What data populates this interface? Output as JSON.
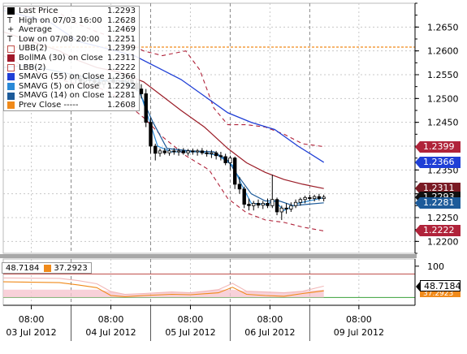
{
  "chart_data": {
    "type": "line",
    "price_axis": {
      "ylim": [
        1.2175,
        1.27
      ],
      "ticks": [
        "1.2650",
        "1.2600",
        "1.2550",
        "1.2500",
        "1.2450",
        "1.2400",
        "1.2350",
        "1.2300",
        "1.2250",
        "1.2200"
      ],
      "tick_values": [
        1.265,
        1.26,
        1.255,
        1.25,
        1.245,
        1.24,
        1.235,
        1.23,
        1.225,
        1.22
      ]
    },
    "sub_axis": {
      "ylim": [
        0,
        110
      ],
      "ticks": [
        "100"
      ],
      "tick_values": [
        100
      ]
    },
    "time_axis": {
      "xlim": [
        0,
        8.8
      ],
      "time_labels": [
        "08:00",
        "08:00",
        "08:00",
        "08:00",
        "08:00"
      ],
      "date_labels": [
        "03 Jul 2012",
        "04 Jul 2012",
        "05 Jul 2012",
        "06 Jul 2012",
        "09 Jul 2012"
      ],
      "label_positions": [
        0.6,
        2.3,
        4.0,
        5.7,
        7.6
      ],
      "day_separators": [
        1.45,
        3.15,
        4.85,
        6.55
      ]
    },
    "legend": [
      {
        "name": "Last Price",
        "value": "1.2293",
        "color": "#000000",
        "marker": "square"
      },
      {
        "name": "High on 07/03 16:00",
        "value": "1.2628",
        "color": "#000000",
        "marker": "tee"
      },
      {
        "name": "Average",
        "value": "1.2469",
        "color": "#000000",
        "marker": "plus"
      },
      {
        "name": "Low on 07/08 20:00",
        "value": "1.2251",
        "color": "#000000",
        "marker": "tee"
      },
      {
        "name": "UBB(2)",
        "value": "1.2399",
        "color": "#c0504d",
        "marker": "outline"
      },
      {
        "name": "BollMA (30) on Close",
        "value": "1.2311",
        "color": "#a0182a",
        "marker": "square"
      },
      {
        "name": "LBB(2)",
        "value": "1.2222",
        "color": "#c0504d",
        "marker": "outline"
      },
      {
        "name": "SMAVG (55) on Close",
        "value": "1.2366",
        "color": "#1f3fd6",
        "marker": "square"
      },
      {
        "name": "SMAVG (5) on Close",
        "value": "1.2292",
        "color": "#2a8ad8",
        "marker": "square"
      },
      {
        "name": "SMAVG (14) on Close",
        "value": "1.2281",
        "color": "#1d5b9a",
        "marker": "square"
      },
      {
        "name": "Prev Close -----",
        "value": "1.2608",
        "color": "#f08a1a",
        "marker": "square"
      }
    ],
    "axis_tags": [
      {
        "value": "1.2399",
        "price": 1.2399,
        "color": "#b0233a"
      },
      {
        "value": "1.2366",
        "price": 1.2366,
        "color": "#1f3fd6"
      },
      {
        "value": "1.2311",
        "price": 1.2311,
        "color": "#7a1a24"
      },
      {
        "value": "1.2293",
        "price": 1.2293,
        "color": "#111111"
      },
      {
        "value": "1.2281",
        "price": 1.2281,
        "color": "#1d5b9a"
      },
      {
        "value": "1.2222",
        "price": 1.2222,
        "color": "#b0233a"
      }
    ],
    "sub_legend": [
      {
        "value": "48.7184",
        "color": "#ffffff"
      },
      {
        "value": "37.2923",
        "color": "#f08a1a"
      }
    ],
    "sub_tag": {
      "value": "48.7184",
      "value2": "37.2923"
    },
    "prev_close": 1.2608,
    "candles": [
      {
        "t": 1.45,
        "o": 1.2545,
        "h": 1.2552,
        "l": 1.253,
        "c": 1.254
      },
      {
        "t": 1.55,
        "o": 1.254,
        "h": 1.2548,
        "l": 1.2532,
        "c": 1.2542
      },
      {
        "t": 1.65,
        "o": 1.2542,
        "h": 1.255,
        "l": 1.253,
        "c": 1.2536
      },
      {
        "t": 1.75,
        "o": 1.2536,
        "h": 1.2545,
        "l": 1.2528,
        "c": 1.254
      },
      {
        "t": 1.85,
        "o": 1.254,
        "h": 1.2548,
        "l": 1.2532,
        "c": 1.2538
      },
      {
        "t": 1.95,
        "o": 1.2538,
        "h": 1.2546,
        "l": 1.2528,
        "c": 1.2534
      },
      {
        "t": 2.05,
        "o": 1.2534,
        "h": 1.2542,
        "l": 1.2522,
        "c": 1.253
      },
      {
        "t": 2.15,
        "o": 1.253,
        "h": 1.254,
        "l": 1.2522,
        "c": 1.2536
      },
      {
        "t": 2.25,
        "o": 1.2536,
        "h": 1.2544,
        "l": 1.2528,
        "c": 1.254
      },
      {
        "t": 2.35,
        "o": 1.254,
        "h": 1.2547,
        "l": 1.253,
        "c": 1.2534
      },
      {
        "t": 2.45,
        "o": 1.2534,
        "h": 1.2542,
        "l": 1.2526,
        "c": 1.2538
      },
      {
        "t": 2.55,
        "o": 1.2538,
        "h": 1.2545,
        "l": 1.253,
        "c": 1.2536
      },
      {
        "t": 2.65,
        "o": 1.2536,
        "h": 1.2544,
        "l": 1.2528,
        "c": 1.254
      },
      {
        "t": 2.75,
        "o": 1.254,
        "h": 1.2546,
        "l": 1.2528,
        "c": 1.2532
      },
      {
        "t": 2.85,
        "o": 1.2532,
        "h": 1.2538,
        "l": 1.2515,
        "c": 1.252
      },
      {
        "t": 2.95,
        "o": 1.252,
        "h": 1.253,
        "l": 1.25,
        "c": 1.251
      },
      {
        "t": 3.05,
        "o": 1.251,
        "h": 1.252,
        "l": 1.244,
        "c": 1.245
      },
      {
        "t": 3.15,
        "o": 1.245,
        "h": 1.246,
        "l": 1.2385,
        "c": 1.24
      },
      {
        "t": 3.25,
        "o": 1.24,
        "h": 1.2405,
        "l": 1.237,
        "c": 1.2385
      },
      {
        "t": 3.35,
        "o": 1.2385,
        "h": 1.2395,
        "l": 1.2378,
        "c": 1.239
      },
      {
        "t": 3.45,
        "o": 1.239,
        "h": 1.2396,
        "l": 1.2382,
        "c": 1.2386
      },
      {
        "t": 3.55,
        "o": 1.2386,
        "h": 1.2394,
        "l": 1.238,
        "c": 1.239
      },
      {
        "t": 3.65,
        "o": 1.239,
        "h": 1.2396,
        "l": 1.2382,
        "c": 1.2388
      },
      {
        "t": 3.75,
        "o": 1.2388,
        "h": 1.2395,
        "l": 1.238,
        "c": 1.239
      },
      {
        "t": 3.85,
        "o": 1.239,
        "h": 1.2396,
        "l": 1.2382,
        "c": 1.2386
      },
      {
        "t": 3.95,
        "o": 1.2386,
        "h": 1.2394,
        "l": 1.238,
        "c": 1.239
      },
      {
        "t": 4.05,
        "o": 1.239,
        "h": 1.2395,
        "l": 1.2382,
        "c": 1.2388
      },
      {
        "t": 4.15,
        "o": 1.2388,
        "h": 1.2394,
        "l": 1.238,
        "c": 1.239
      },
      {
        "t": 4.25,
        "o": 1.239,
        "h": 1.2396,
        "l": 1.2382,
        "c": 1.2386
      },
      {
        "t": 4.35,
        "o": 1.2386,
        "h": 1.2392,
        "l": 1.2378,
        "c": 1.2384
      },
      {
        "t": 4.45,
        "o": 1.2384,
        "h": 1.2392,
        "l": 1.2375,
        "c": 1.2386
      },
      {
        "t": 4.55,
        "o": 1.2386,
        "h": 1.239,
        "l": 1.2372,
        "c": 1.238
      },
      {
        "t": 4.65,
        "o": 1.238,
        "h": 1.2388,
        "l": 1.237,
        "c": 1.2378
      },
      {
        "t": 4.75,
        "o": 1.2378,
        "h": 1.2384,
        "l": 1.236,
        "c": 1.2365
      },
      {
        "t": 4.85,
        "o": 1.2365,
        "h": 1.238,
        "l": 1.235,
        "c": 1.2375
      },
      {
        "t": 4.95,
        "o": 1.2375,
        "h": 1.2378,
        "l": 1.231,
        "c": 1.232
      },
      {
        "t": 5.05,
        "o": 1.232,
        "h": 1.2335,
        "l": 1.23,
        "c": 1.231
      },
      {
        "t": 5.15,
        "o": 1.231,
        "h": 1.2315,
        "l": 1.227,
        "c": 1.2278
      },
      {
        "t": 5.25,
        "o": 1.2278,
        "h": 1.229,
        "l": 1.2265,
        "c": 1.2275
      },
      {
        "t": 5.35,
        "o": 1.2275,
        "h": 1.2285,
        "l": 1.2265,
        "c": 1.228
      },
      {
        "t": 5.45,
        "o": 1.228,
        "h": 1.2288,
        "l": 1.227,
        "c": 1.2276
      },
      {
        "t": 5.55,
        "o": 1.2276,
        "h": 1.2285,
        "l": 1.2268,
        "c": 1.228
      },
      {
        "t": 5.65,
        "o": 1.228,
        "h": 1.229,
        "l": 1.227,
        "c": 1.2275
      },
      {
        "t": 5.75,
        "o": 1.2275,
        "h": 1.234,
        "l": 1.227,
        "c": 1.2288
      },
      {
        "t": 5.85,
        "o": 1.2288,
        "h": 1.2292,
        "l": 1.2255,
        "c": 1.2262
      },
      {
        "t": 5.95,
        "o": 1.2262,
        "h": 1.2275,
        "l": 1.2245,
        "c": 1.227
      },
      {
        "t": 6.05,
        "o": 1.227,
        "h": 1.228,
        "l": 1.2258,
        "c": 1.2268
      },
      {
        "t": 6.15,
        "o": 1.2268,
        "h": 1.2282,
        "l": 1.2262,
        "c": 1.2275
      },
      {
        "t": 6.25,
        "o": 1.2275,
        "h": 1.2288,
        "l": 1.227,
        "c": 1.2282
      },
      {
        "t": 6.35,
        "o": 1.2282,
        "h": 1.2292,
        "l": 1.2275,
        "c": 1.2288
      },
      {
        "t": 6.45,
        "o": 1.2288,
        "h": 1.2296,
        "l": 1.228,
        "c": 1.2292
      },
      {
        "t": 6.55,
        "o": 1.2292,
        "h": 1.2298,
        "l": 1.2285,
        "c": 1.229
      },
      {
        "t": 6.65,
        "o": 1.229,
        "h": 1.2298,
        "l": 1.2284,
        "c": 1.2294
      },
      {
        "t": 6.75,
        "o": 1.2294,
        "h": 1.23,
        "l": 1.2286,
        "c": 1.229
      },
      {
        "t": 6.85,
        "o": 1.229,
        "h": 1.2298,
        "l": 1.2284,
        "c": 1.2293
      }
    ],
    "bb_upper": [
      [
        0,
        1.269
      ],
      [
        0.6,
        1.269
      ],
      [
        1.2,
        1.268
      ],
      [
        1.5,
        1.266
      ],
      [
        2.0,
        1.264
      ],
      [
        2.6,
        1.262
      ],
      [
        3.0,
        1.26
      ],
      [
        3.4,
        1.259
      ],
      [
        3.9,
        1.26
      ],
      [
        4.2,
        1.256
      ],
      [
        4.5,
        1.248
      ],
      [
        4.8,
        1.2445
      ],
      [
        5.2,
        1.2445
      ],
      [
        5.6,
        1.244
      ],
      [
        6.0,
        1.2425
      ],
      [
        6.4,
        1.2405
      ],
      [
        6.85,
        1.2399
      ]
    ],
    "bb_middle": [
      [
        0,
        1.264
      ],
      [
        0.6,
        1.262
      ],
      [
        1.2,
        1.26
      ],
      [
        1.6,
        1.258
      ],
      [
        2.0,
        1.2565
      ],
      [
        2.5,
        1.2555
      ],
      [
        3.0,
        1.2535
      ],
      [
        3.4,
        1.2505
      ],
      [
        3.8,
        1.2475
      ],
      [
        4.3,
        1.244
      ],
      [
        4.8,
        1.2395
      ],
      [
        5.2,
        1.2365
      ],
      [
        5.6,
        1.2345
      ],
      [
        6.0,
        1.233
      ],
      [
        6.4,
        1.232
      ],
      [
        6.85,
        1.2311
      ]
    ],
    "bb_lower": [
      [
        0,
        1.259
      ],
      [
        0.6,
        1.256
      ],
      [
        1.2,
        1.254
      ],
      [
        1.6,
        1.253
      ],
      [
        2.0,
        1.2525
      ],
      [
        2.5,
        1.25
      ],
      [
        3.0,
        1.246
      ],
      [
        3.4,
        1.242
      ],
      [
        3.9,
        1.238
      ],
      [
        4.4,
        1.235
      ],
      [
        4.8,
        1.229
      ],
      [
        5.2,
        1.226
      ],
      [
        5.6,
        1.2245
      ],
      [
        6.0,
        1.224
      ],
      [
        6.4,
        1.223
      ],
      [
        6.85,
        1.2222
      ]
    ],
    "sma55": [
      [
        0,
        1.2685
      ],
      [
        1.0,
        1.266
      ],
      [
        1.6,
        1.262
      ],
      [
        2.2,
        1.2605
      ],
      [
        2.8,
        1.259
      ],
      [
        3.3,
        1.2565
      ],
      [
        3.8,
        1.254
      ],
      [
        4.3,
        1.2505
      ],
      [
        4.8,
        1.247
      ],
      [
        5.3,
        1.245
      ],
      [
        5.8,
        1.2435
      ],
      [
        6.3,
        1.24
      ],
      [
        6.85,
        1.2366
      ]
    ],
    "sma14": [
      [
        0,
        1.2565
      ],
      [
        0.5,
        1.257
      ],
      [
        1.0,
        1.256
      ],
      [
        1.5,
        1.255
      ],
      [
        2.0,
        1.254
      ],
      [
        2.6,
        1.2535
      ],
      [
        2.9,
        1.2515
      ],
      [
        3.2,
        1.245
      ],
      [
        3.5,
        1.2395
      ],
      [
        4.0,
        1.239
      ],
      [
        4.5,
        1.2388
      ],
      [
        4.8,
        1.237
      ],
      [
        5.0,
        1.234
      ],
      [
        5.3,
        1.23
      ],
      [
        5.6,
        1.2285
      ],
      [
        5.9,
        1.2285
      ],
      [
        6.2,
        1.2275
      ],
      [
        6.5,
        1.2278
      ],
      [
        6.85,
        1.2281
      ]
    ],
    "sma5": [
      [
        1.45,
        1.2542
      ],
      [
        2.0,
        1.2536
      ],
      [
        2.6,
        1.2538
      ],
      [
        2.9,
        1.252
      ],
      [
        3.1,
        1.246
      ],
      [
        3.3,
        1.24
      ],
      [
        3.6,
        1.2388
      ],
      [
        4.2,
        1.2388
      ],
      [
        4.6,
        1.238
      ],
      [
        4.9,
        1.236
      ],
      [
        5.1,
        1.2318
      ],
      [
        5.3,
        1.228
      ],
      [
        5.6,
        1.2278
      ],
      [
        5.8,
        1.2285
      ],
      [
        6.0,
        1.2265
      ],
      [
        6.3,
        1.228
      ],
      [
        6.85,
        1.2292
      ]
    ],
    "sub_line_white": [
      [
        0,
        70
      ],
      [
        1.2,
        69
      ],
      [
        1.6,
        63
      ],
      [
        2.0,
        55
      ],
      [
        2.3,
        35
      ],
      [
        2.6,
        28
      ],
      [
        3.0,
        30
      ],
      [
        3.6,
        34
      ],
      [
        4.0,
        32
      ],
      [
        4.6,
        40
      ],
      [
        4.9,
        56
      ],
      [
        5.2,
        36
      ],
      [
        5.6,
        34
      ],
      [
        6.0,
        32
      ],
      [
        6.4,
        36
      ],
      [
        6.85,
        49
      ]
    ],
    "sub_line_orange": [
      [
        0,
        60
      ],
      [
        1.2,
        58
      ],
      [
        1.6,
        52
      ],
      [
        2.0,
        45
      ],
      [
        2.3,
        25
      ],
      [
        2.6,
        22
      ],
      [
        3.0,
        25
      ],
      [
        3.6,
        28
      ],
      [
        4.0,
        27
      ],
      [
        4.6,
        32
      ],
      [
        4.9,
        46
      ],
      [
        5.2,
        28
      ],
      [
        5.6,
        25
      ],
      [
        6.0,
        23
      ],
      [
        6.4,
        30
      ],
      [
        6.85,
        37
      ]
    ],
    "sub_levels": {
      "upper": 80,
      "lower": 20,
      "hundred": 100
    }
  }
}
